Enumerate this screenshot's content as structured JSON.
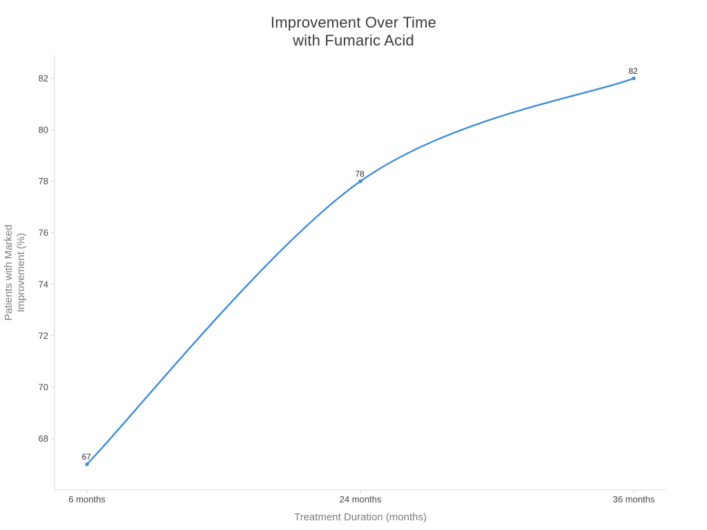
{
  "title": {
    "line1": "Improvement Over Time",
    "line2": "with Fumaric Acid"
  },
  "chart_data": {
    "type": "line",
    "title": "Improvement Over Time with Fumaric Acid",
    "categories": [
      "6 months",
      "24 months",
      "36 months"
    ],
    "values": [
      67,
      78,
      82
    ],
    "point_labels": [
      "67",
      "78",
      "82"
    ],
    "xlabel": "Treatment Duration (months)",
    "ylabel_lines": [
      "Patients with Marked",
      "Improvement (%)"
    ],
    "yticks": [
      68,
      70,
      72,
      74,
      76,
      78,
      80,
      82
    ],
    "ylim": [
      66.0,
      82.9
    ],
    "line_shape": "spline",
    "grid": false,
    "legend": "none",
    "colors": {
      "line": "#3d8dd8",
      "marker": "#3d8dd8",
      "axis_line": "#d9d9d9",
      "tick_mark": "#cfcfcf",
      "tick_label": "#444444",
      "axis_title": "#7d7d7d",
      "title": "#3b3b3b",
      "point_label": "#2b2b2b",
      "background": "#ffffff"
    }
  }
}
